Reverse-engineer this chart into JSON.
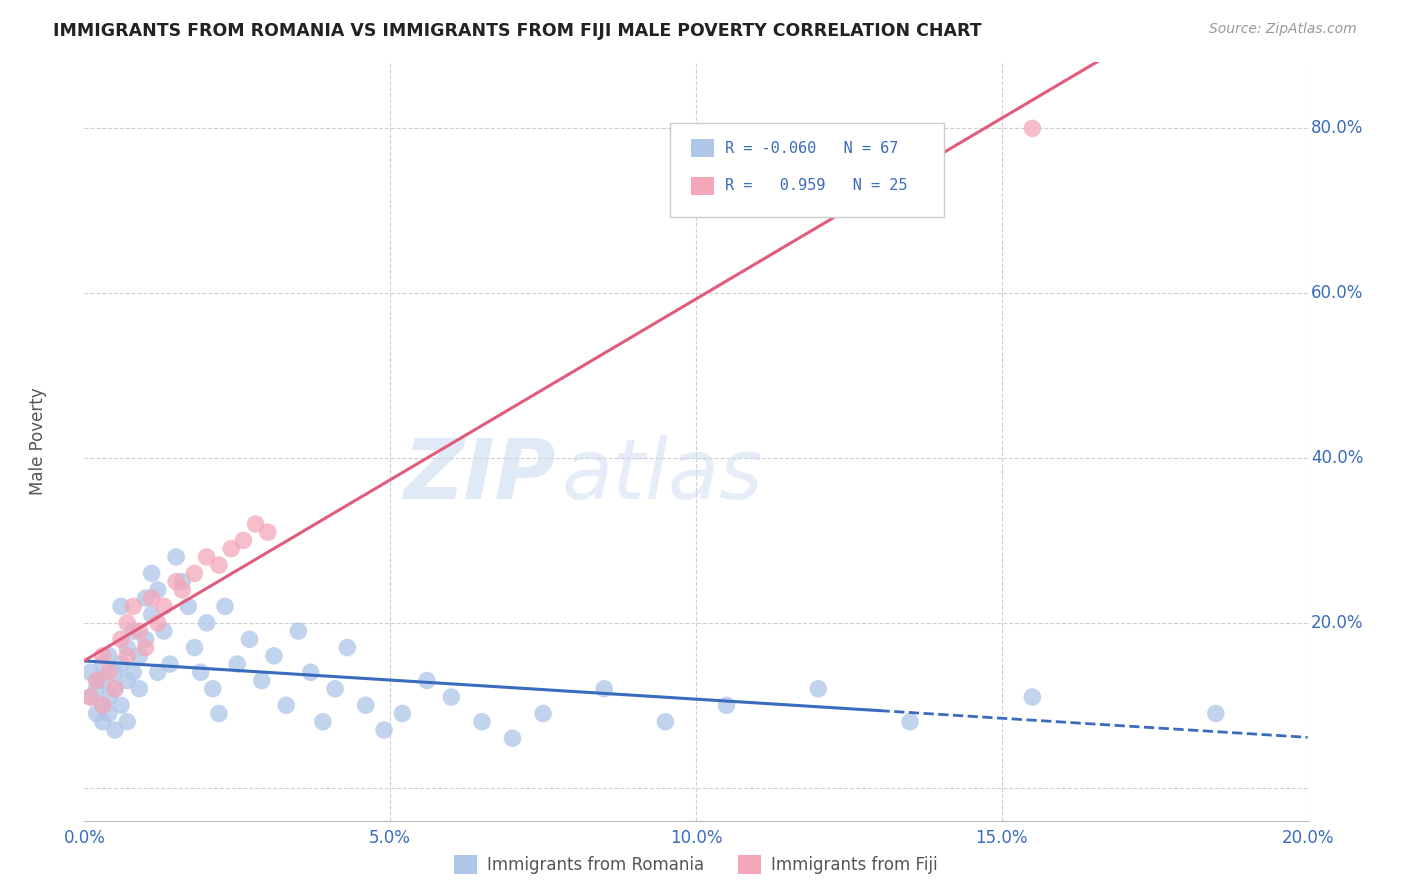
{
  "title": "IMMIGRANTS FROM ROMANIA VS IMMIGRANTS FROM FIJI MALE POVERTY CORRELATION CHART",
  "source": "Source: ZipAtlas.com",
  "ylabel": "Male Poverty",
  "xlim": [
    0.0,
    0.2
  ],
  "ylim": [
    -0.04,
    0.88
  ],
  "yticks": [
    0.0,
    0.2,
    0.4,
    0.6,
    0.8
  ],
  "xticks": [
    0.0,
    0.05,
    0.1,
    0.15,
    0.2
  ],
  "xtick_labels": [
    "0.0%",
    "5.0%",
    "10.0%",
    "15.0%",
    "20.0%"
  ],
  "ytick_labels": [
    "",
    "20.0%",
    "40.0%",
    "60.0%",
    "80.0%"
  ],
  "romania_R": -0.06,
  "romania_N": 67,
  "fiji_R": 0.959,
  "fiji_N": 25,
  "romania_color": "#aec6e8",
  "fiji_color": "#f4a7b9",
  "romania_line_color": "#3a6bbd",
  "fiji_line_color": "#e05c7a",
  "romania_x": [
    0.001,
    0.001,
    0.002,
    0.002,
    0.002,
    0.003,
    0.003,
    0.003,
    0.003,
    0.004,
    0.004,
    0.004,
    0.005,
    0.005,
    0.005,
    0.006,
    0.006,
    0.006,
    0.007,
    0.007,
    0.007,
    0.008,
    0.008,
    0.009,
    0.009,
    0.01,
    0.01,
    0.011,
    0.011,
    0.012,
    0.012,
    0.013,
    0.014,
    0.015,
    0.016,
    0.017,
    0.018,
    0.019,
    0.02,
    0.021,
    0.022,
    0.023,
    0.025,
    0.027,
    0.029,
    0.031,
    0.033,
    0.035,
    0.037,
    0.039,
    0.041,
    0.043,
    0.046,
    0.049,
    0.052,
    0.056,
    0.06,
    0.065,
    0.07,
    0.075,
    0.085,
    0.095,
    0.105,
    0.12,
    0.135,
    0.155,
    0.185
  ],
  "romania_y": [
    0.14,
    0.11,
    0.13,
    0.09,
    0.12,
    0.15,
    0.1,
    0.08,
    0.13,
    0.16,
    0.11,
    0.09,
    0.14,
    0.12,
    0.07,
    0.15,
    0.22,
    0.1,
    0.17,
    0.13,
    0.08,
    0.14,
    0.19,
    0.12,
    0.16,
    0.23,
    0.18,
    0.26,
    0.21,
    0.14,
    0.24,
    0.19,
    0.15,
    0.28,
    0.25,
    0.22,
    0.17,
    0.14,
    0.2,
    0.12,
    0.09,
    0.22,
    0.15,
    0.18,
    0.13,
    0.16,
    0.1,
    0.19,
    0.14,
    0.08,
    0.12,
    0.17,
    0.1,
    0.07,
    0.09,
    0.13,
    0.11,
    0.08,
    0.06,
    0.09,
    0.12,
    0.08,
    0.1,
    0.12,
    0.08,
    0.11,
    0.09
  ],
  "fiji_x": [
    0.001,
    0.002,
    0.003,
    0.003,
    0.004,
    0.005,
    0.006,
    0.007,
    0.007,
    0.008,
    0.009,
    0.01,
    0.011,
    0.012,
    0.013,
    0.015,
    0.016,
    0.018,
    0.02,
    0.022,
    0.024,
    0.026,
    0.028,
    0.03,
    0.155
  ],
  "fiji_y": [
    0.11,
    0.13,
    0.1,
    0.16,
    0.14,
    0.12,
    0.18,
    0.2,
    0.16,
    0.22,
    0.19,
    0.17,
    0.23,
    0.2,
    0.22,
    0.25,
    0.24,
    0.26,
    0.28,
    0.27,
    0.29,
    0.3,
    0.32,
    0.31,
    0.8
  ],
  "watermark_zip": "ZIP",
  "watermark_atlas": "atlas",
  "background_color": "#ffffff",
  "grid_color": "#d0d0d0"
}
